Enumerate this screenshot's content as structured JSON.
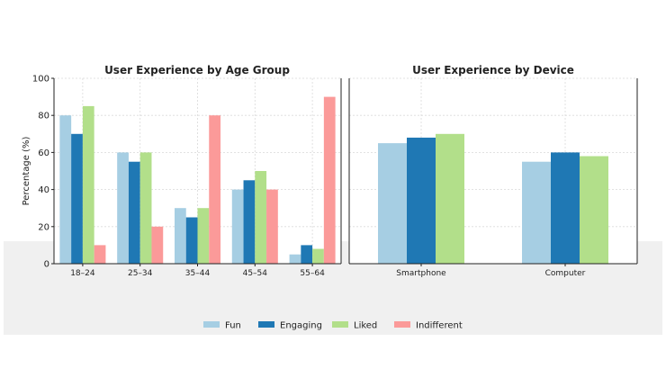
{
  "colors": {
    "fun": "#a6cee3",
    "engaging": "#1f78b4",
    "liked": "#b2df8a",
    "indifferent": "#fb9a99",
    "band": "#f0f0f0",
    "grid": "#d9d9d9",
    "axis": "#222222",
    "text": "#222222"
  },
  "legend": [
    {
      "label": "Fun",
      "color_key": "fun"
    },
    {
      "label": "Engaging",
      "color_key": "engaging"
    },
    {
      "label": "Liked",
      "color_key": "liked"
    },
    {
      "label": "Indifferent",
      "color_key": "indifferent"
    }
  ],
  "chart_data": [
    {
      "type": "bar",
      "title": "User Experience by Age Group",
      "xlabel": "",
      "ylabel": "Percentage (%)",
      "ylim": [
        0,
        100
      ],
      "yticks": [
        0,
        20,
        40,
        60,
        80,
        100
      ],
      "grid": true,
      "categories": [
        "18–24",
        "25–34",
        "35–44",
        "45–54",
        "55–64"
      ],
      "series": [
        {
          "name": "Fun",
          "color_key": "fun",
          "values": [
            80,
            60,
            30,
            40,
            5
          ]
        },
        {
          "name": "Engaging",
          "color_key": "engaging",
          "values": [
            70,
            55,
            25,
            45,
            10
          ]
        },
        {
          "name": "Liked",
          "color_key": "liked",
          "values": [
            85,
            60,
            30,
            50,
            8
          ]
        },
        {
          "name": "Indifferent",
          "color_key": "indifferent",
          "values": [
            10,
            20,
            80,
            40,
            90
          ]
        }
      ]
    },
    {
      "type": "bar",
      "title": "User Experience by Device",
      "xlabel": "",
      "ylabel": "",
      "ylim": [
        0,
        100
      ],
      "grid": true,
      "categories": [
        "Smartphone",
        "Computer"
      ],
      "series": [
        {
          "name": "Fun",
          "color_key": "fun",
          "values": [
            65,
            55
          ]
        },
        {
          "name": "Engaging",
          "color_key": "engaging",
          "values": [
            68,
            60
          ]
        },
        {
          "name": "Liked",
          "color_key": "liked",
          "values": [
            70,
            58
          ]
        }
      ]
    }
  ]
}
